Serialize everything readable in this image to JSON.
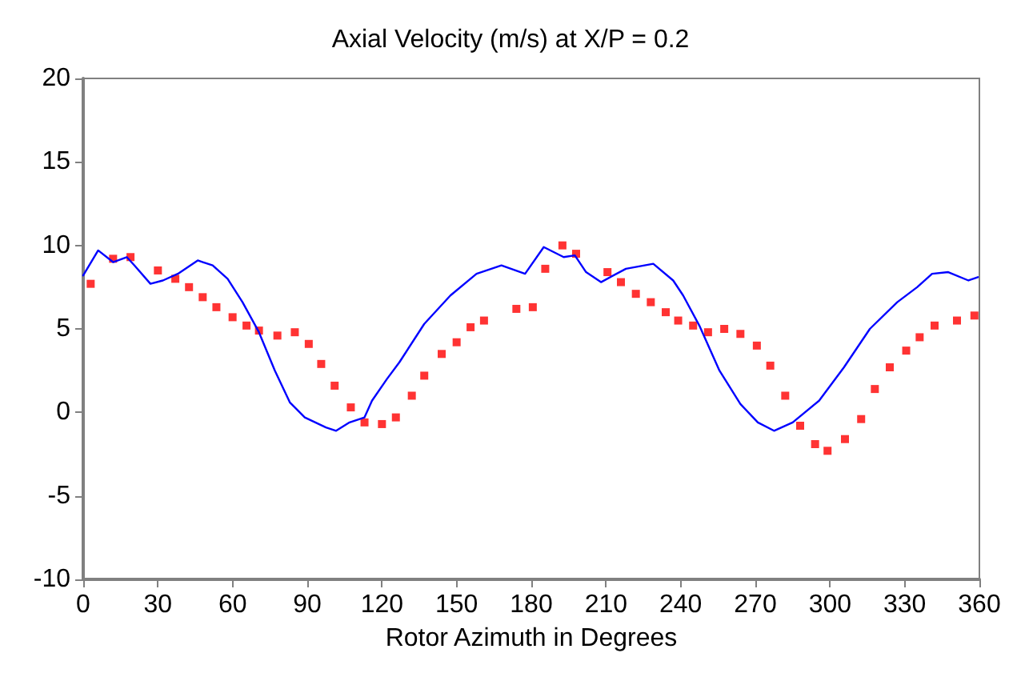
{
  "chart_data": {
    "type": "scatter",
    "title": "Axial Velocity (m/s) at X/P = 0.2",
    "xlabel": "Rotor Azimuth in Degrees",
    "xlim": [
      0,
      360
    ],
    "xticks": [
      0,
      30,
      60,
      90,
      120,
      150,
      180,
      210,
      240,
      270,
      300,
      330,
      360
    ],
    "ylim": [
      -10,
      20
    ],
    "yticks": [
      -10,
      -5,
      0,
      5,
      10,
      15,
      20
    ],
    "grid": false,
    "series": [
      {
        "type": "line",
        "color": "#0000ff",
        "marker": "none",
        "line_style": "solid",
        "x": [
          0,
          6,
          12,
          17.5,
          20.6,
          27,
          32,
          38,
          46,
          52,
          58,
          64,
          70.6,
          77,
          83,
          89,
          97.5,
          101.6,
          107,
          113,
          116,
          122,
          127,
          137,
          147.5,
          158,
          168,
          177.5,
          185,
          193,
          197.5,
          202,
          208,
          218,
          229,
          237,
          241,
          247.5,
          255.6,
          264,
          271,
          277.5,
          285,
          295.6,
          305.6,
          316,
          327,
          335,
          341,
          347.5,
          355.6,
          359.4
        ],
        "values": [
          8.2,
          9.7,
          9.0,
          9.3,
          8.8,
          7.7,
          7.9,
          8.3,
          9.1,
          8.8,
          8.0,
          6.6,
          4.8,
          2.5,
          0.6,
          -0.3,
          -0.9,
          -1.1,
          -0.6,
          -0.3,
          0.7,
          2.0,
          3.0,
          5.3,
          7.0,
          8.3,
          8.8,
          8.3,
          9.9,
          9.3,
          9.4,
          8.4,
          7.8,
          8.6,
          8.9,
          7.9,
          7.0,
          5.2,
          2.5,
          0.5,
          -0.6,
          -1.1,
          -0.6,
          0.7,
          2.7,
          5.0,
          6.6,
          7.5,
          8.3,
          8.4,
          7.9,
          8.1
        ]
      },
      {
        "color": "#ff0000",
        "marker": "square",
        "x": [
          3,
          12,
          19,
          30,
          37,
          42.5,
          48,
          53.5,
          60,
          65.6,
          70.6,
          78,
          85,
          90.6,
          95.6,
          101,
          107.5,
          113,
          120,
          125.6,
          132,
          137,
          144,
          150,
          155.6,
          161,
          174,
          180.6,
          185.6,
          192.5,
          198,
          210.6,
          216,
          222,
          228,
          234,
          239,
          245,
          251,
          257.5,
          264,
          270.6,
          276,
          282,
          288,
          294,
          299,
          306,
          312.5,
          318,
          324,
          330.6,
          336,
          342,
          351,
          358
        ],
        "values": [
          7.7,
          9.2,
          9.3,
          8.5,
          8.0,
          7.5,
          6.9,
          6.3,
          5.7,
          5.2,
          4.9,
          4.6,
          4.8,
          4.1,
          2.9,
          1.6,
          0.3,
          -0.6,
          -0.7,
          -0.3,
          1.0,
          2.2,
          3.5,
          4.2,
          5.1,
          5.5,
          6.2,
          6.3,
          8.6,
          10.0,
          9.5,
          8.4,
          7.8,
          7.1,
          6.6,
          6.0,
          5.5,
          5.2,
          4.8,
          5.0,
          4.7,
          4.0,
          2.8,
          1.0,
          -0.8,
          -1.9,
          -2.3,
          -1.6,
          -0.4,
          1.4,
          2.7,
          3.7,
          4.5,
          5.2,
          5.5,
          5.8
        ]
      }
    ]
  }
}
